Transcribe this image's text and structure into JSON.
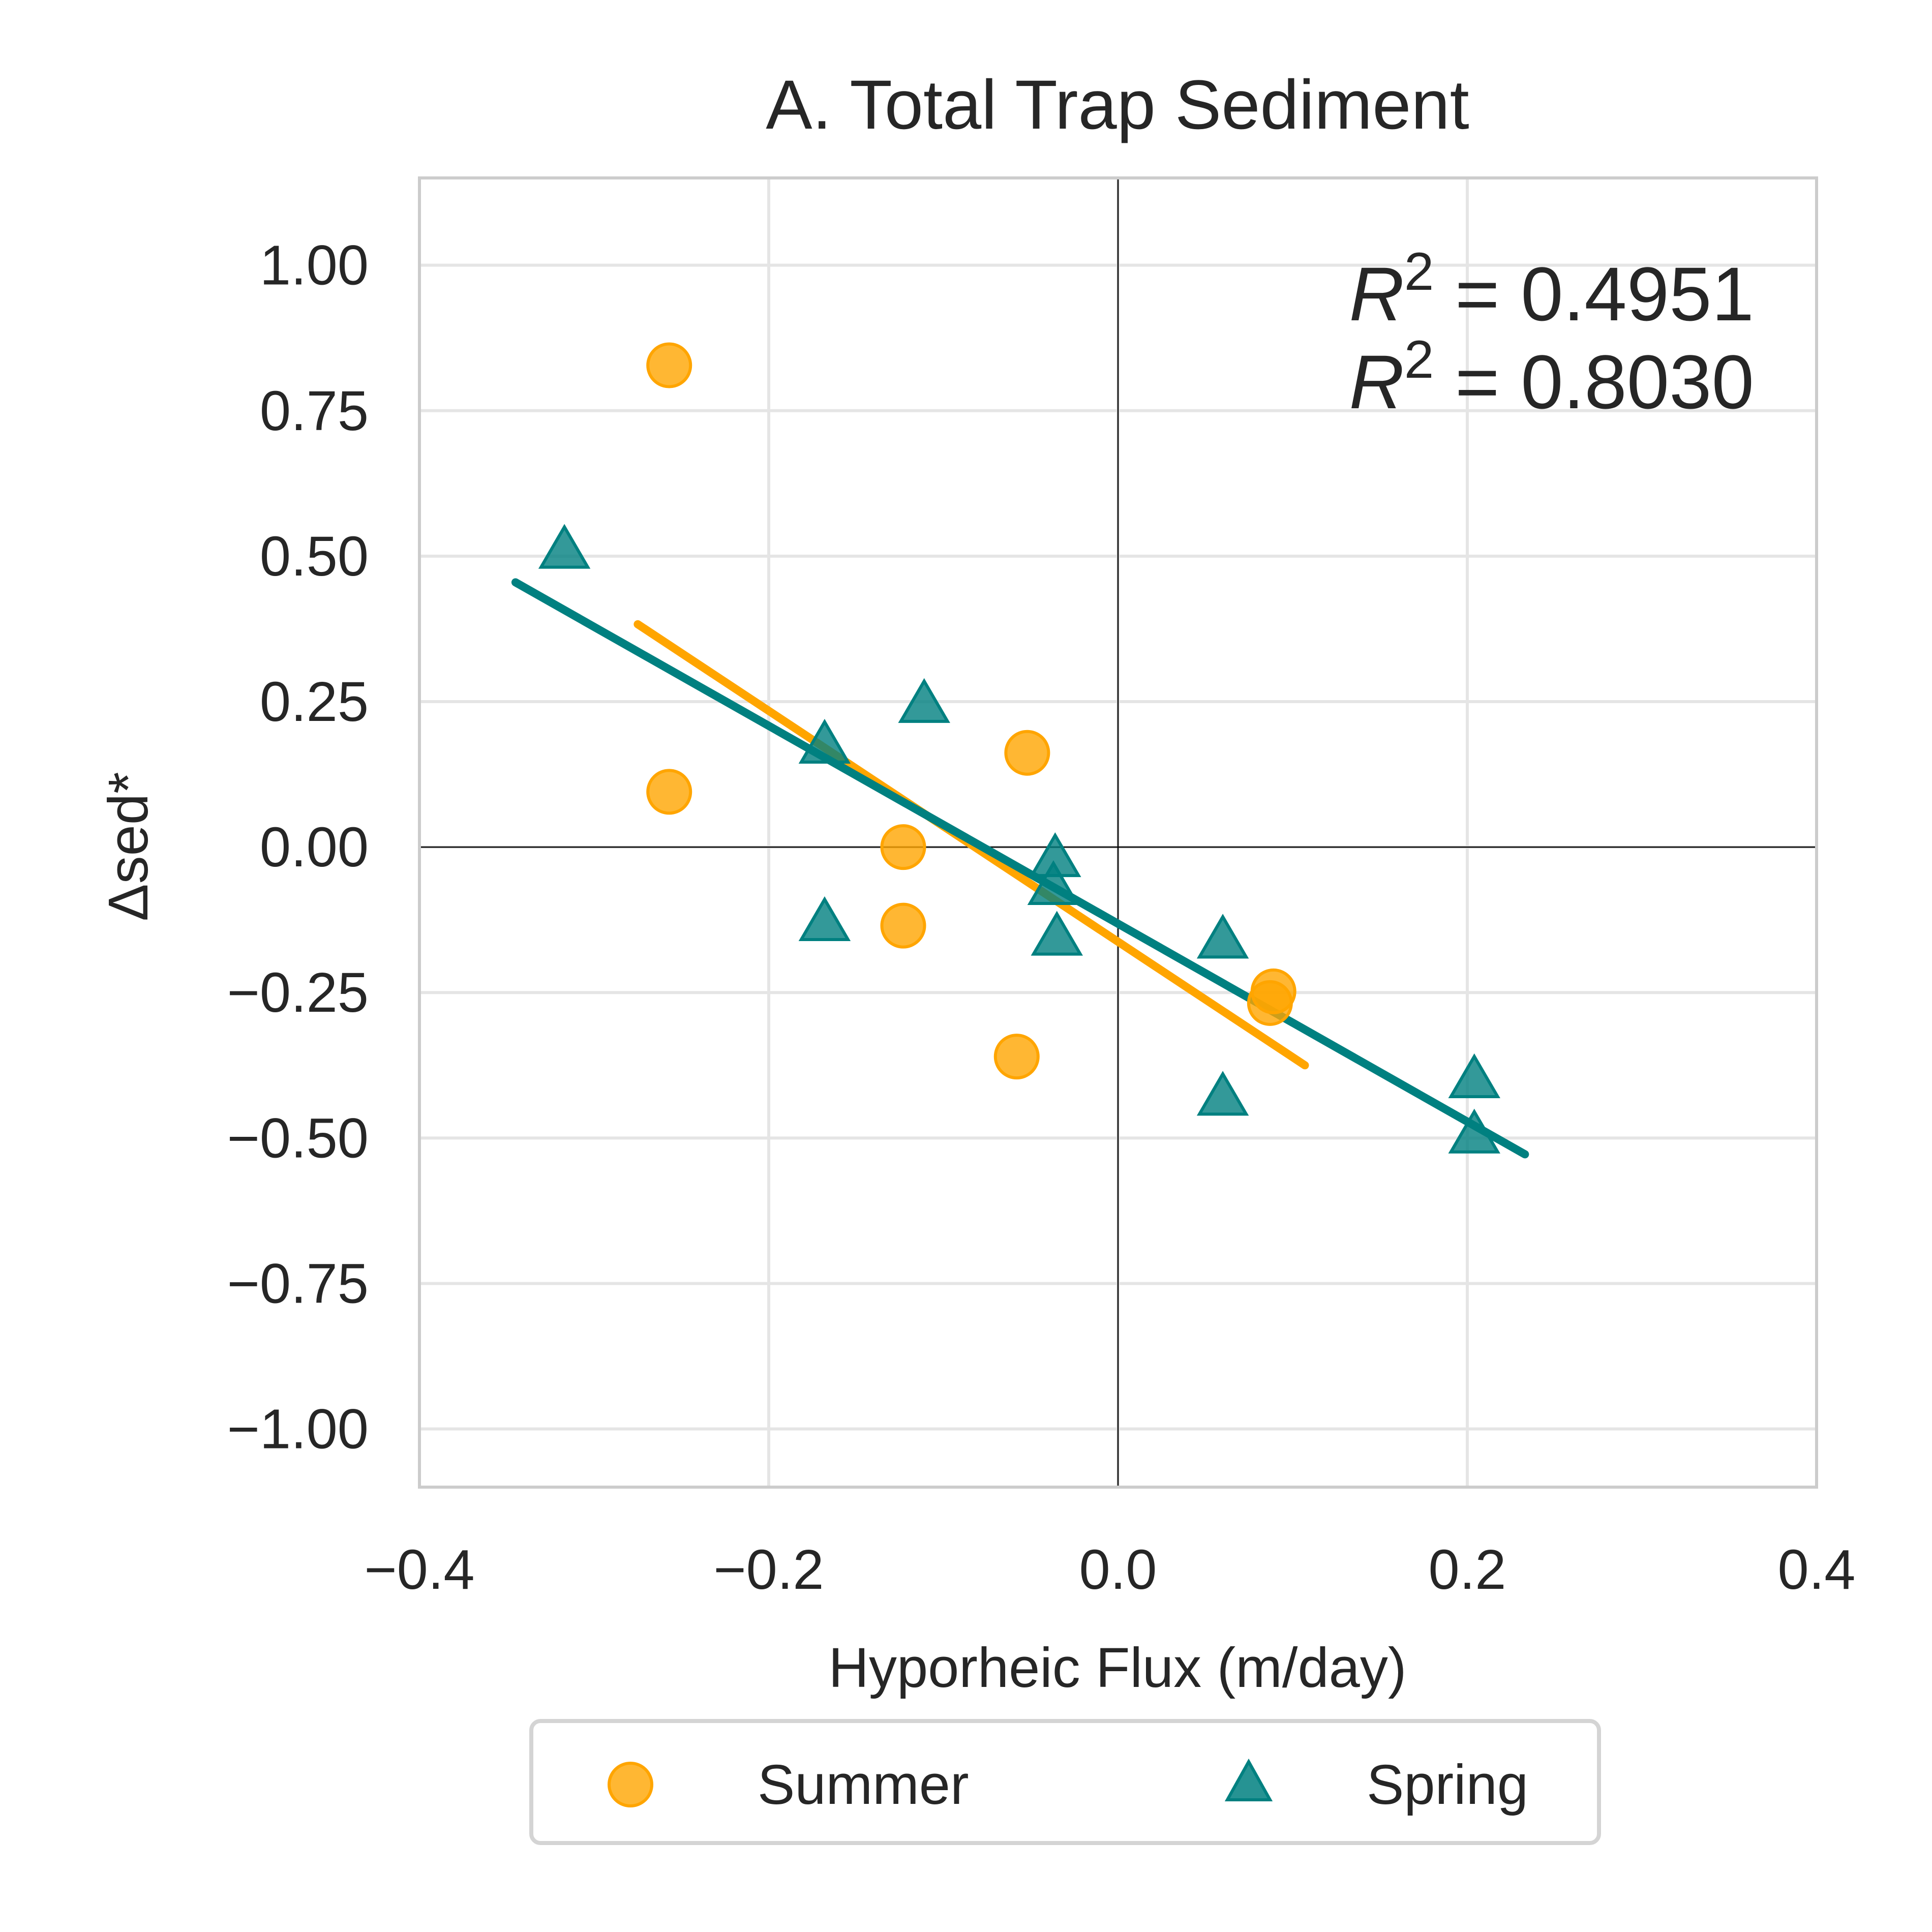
{
  "chart_data": {
    "type": "scatter",
    "title": "A. Total Trap Sediment",
    "xlabel": "Hyporheic Flux (m/day)",
    "ylabel": "Δsed*",
    "xlim": [
      -0.4,
      0.4
    ],
    "ylim": [
      -1.1,
      1.15
    ],
    "xticks": [
      -0.4,
      -0.2,
      0.0,
      0.2,
      0.4
    ],
    "xtick_labels": [
      "−0.4",
      "−0.2",
      "0.0",
      "0.2",
      "0.4"
    ],
    "yticks": [
      1.0,
      0.75,
      0.5,
      0.25,
      0.0,
      -0.25,
      -0.5,
      -0.75,
      -1.0
    ],
    "ytick_labels": [
      "1.00",
      "0.75",
      "0.50",
      "0.25",
      "0.00",
      "−0.25",
      "−0.50",
      "−0.75",
      "−1.00"
    ],
    "grid": true,
    "zero_lines": true,
    "legend_position": "bottom-center",
    "series": [
      {
        "name": "Summer",
        "marker": "circle",
        "color": "#ffa500",
        "points": [
          {
            "x": -0.257,
            "y": 0.828
          },
          {
            "x": -0.257,
            "y": 0.095
          },
          {
            "x": -0.052,
            "y": 0.162
          },
          {
            "x": -0.123,
            "y": 0.0
          },
          {
            "x": -0.123,
            "y": -0.135
          },
          {
            "x": -0.058,
            "y": -0.36
          },
          {
            "x": 0.089,
            "y": -0.248
          },
          {
            "x": 0.087,
            "y": -0.268
          }
        ],
        "fit": {
          "x": [
            -0.275,
            0.107
          ],
          "y": [
            0.383,
            -0.375
          ]
        },
        "r2_label": "R",
        "r2_sup": "2",
        "r2_value": " = 0.4951"
      },
      {
        "name": "Spring",
        "marker": "triangle",
        "color": "#008080",
        "points": [
          {
            "x": -0.317,
            "y": 0.51
          },
          {
            "x": -0.111,
            "y": 0.245
          },
          {
            "x": -0.168,
            "y": 0.175
          },
          {
            "x": -0.168,
            "y": -0.13
          },
          {
            "x": -0.036,
            "y": -0.02
          },
          {
            "x": -0.037,
            "y": -0.068
          },
          {
            "x": -0.035,
            "y": -0.155
          },
          {
            "x": 0.06,
            "y": -0.16
          },
          {
            "x": 0.06,
            "y": -0.43
          },
          {
            "x": 0.204,
            "y": -0.4
          },
          {
            "x": 0.204,
            "y": -0.495
          }
        ],
        "fit": {
          "x": [
            -0.345,
            0.233
          ],
          "y": [
            0.455,
            -0.528
          ]
        },
        "r2_label": "R",
        "r2_sup": "2",
        "r2_value": " = 0.8030"
      }
    ]
  }
}
